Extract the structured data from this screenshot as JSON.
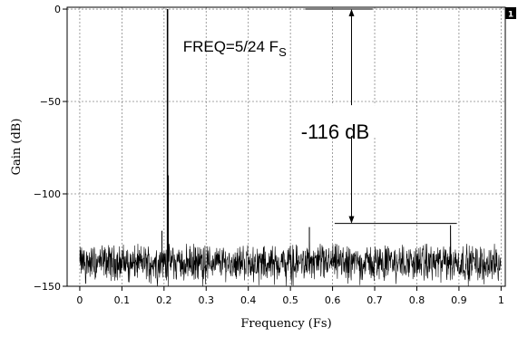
{
  "chart_data": {
    "type": "line",
    "xlabel": "Frequency (Fs)",
    "ylabel": "Gain (dB)",
    "xlim": [
      -0.03,
      1.01
    ],
    "ylim": [
      -150,
      1
    ],
    "x_ticks": [
      0,
      0.1,
      0.2,
      0.3,
      0.4,
      0.5,
      0.6,
      0.7,
      0.8,
      0.9,
      1
    ],
    "x_tick_labels": [
      "0",
      "0.1",
      "0.2",
      "0.3",
      "0.4",
      "0.5",
      "0.6",
      "0.7",
      "0.8",
      "0.9",
      "1"
    ],
    "y_ticks": [
      0,
      -50,
      -100,
      -150
    ],
    "y_tick_labels": [
      "0",
      "−50",
      "−100",
      "−150"
    ],
    "grid": true,
    "series": [
      {
        "tone_frequency": 0.2083,
        "tone_level": 0,
        "noise_floor_mean": -137,
        "noise_floor_min": -150,
        "noise_floor_max": -127,
        "spurs": [
          {
            "x": 0.195,
            "y": -120
          },
          {
            "x": 0.21,
            "y": -90
          },
          {
            "x": 0.545,
            "y": -118
          },
          {
            "x": 0.88,
            "y": -117
          }
        ]
      }
    ],
    "annotations": {
      "freq_label_main": "FREQ=5/24 F",
      "freq_label_sub": "S",
      "dynamic_range_label": "-116 dB",
      "top_ref_level": 0,
      "bottom_ref_level": -116,
      "top_ref_x": [
        0.535,
        0.695
      ],
      "bottom_ref_x": [
        0.605,
        0.895
      ],
      "arrow_x": 0.645
    },
    "corner_badge": "1",
    "colors": {
      "line": "#000000",
      "grid": "#888888",
      "background": "#ffffff"
    }
  }
}
